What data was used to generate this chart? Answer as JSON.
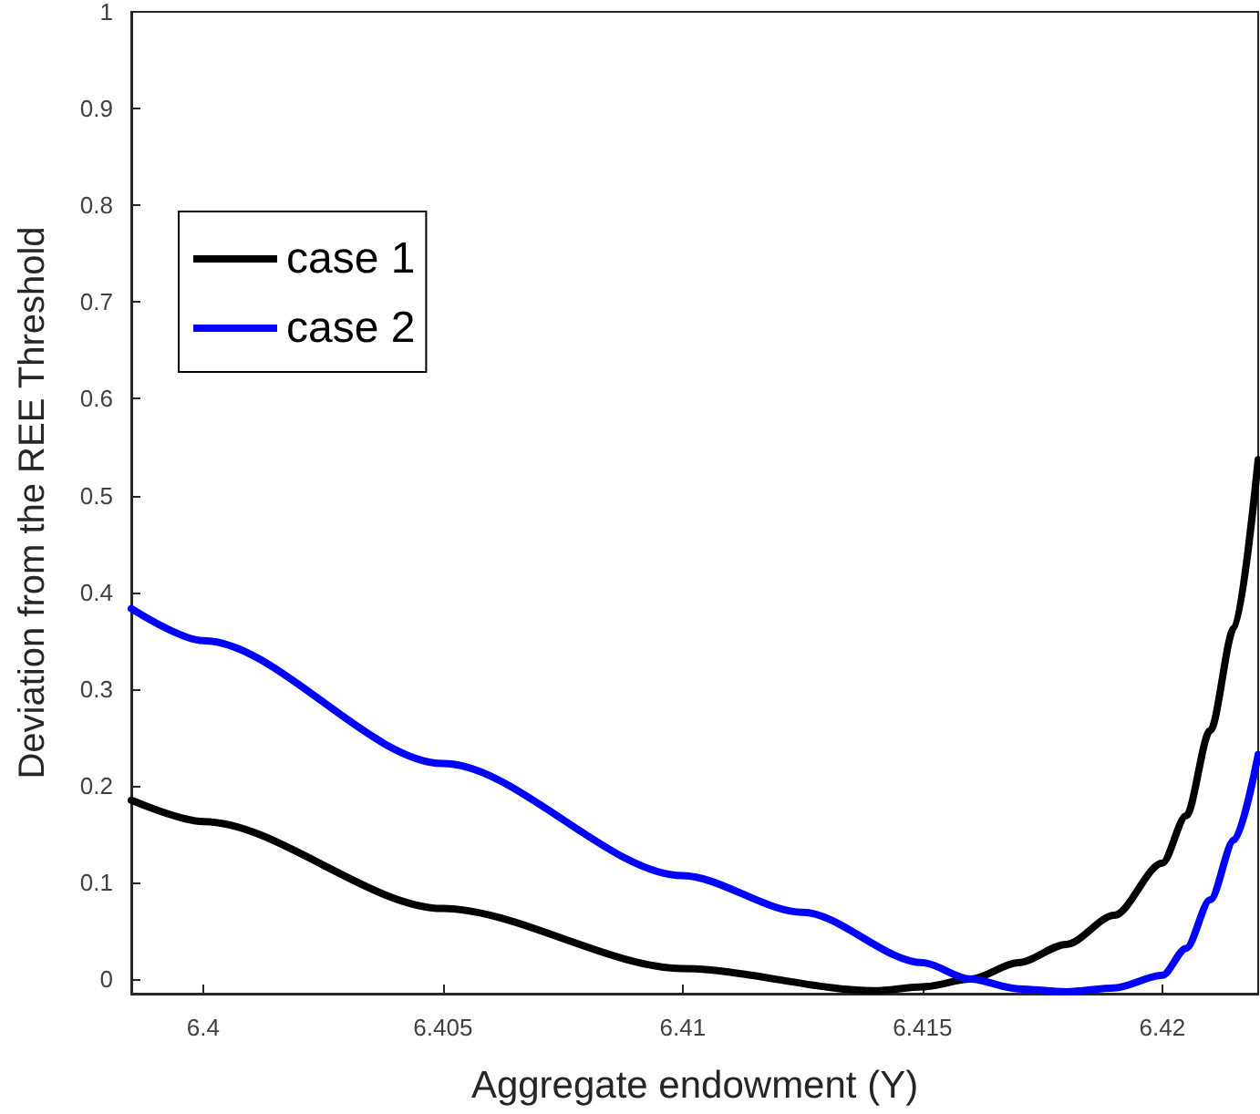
{
  "chart_data": {
    "type": "line",
    "xlabel": "Aggregate endowment (Y)",
    "ylabel": "Deviation from the REE Threshold",
    "series": [
      {
        "name": "case 1",
        "color": "#000000",
        "x": [
          6.3985,
          6.4,
          6.405,
          6.41,
          6.414,
          6.415,
          6.416,
          6.417,
          6.418,
          6.419,
          6.42,
          6.4205,
          6.421,
          6.4215,
          6.422
        ],
        "values": [
          0.185,
          0.163,
          0.073,
          0.011,
          -0.012,
          -0.008,
          0.0,
          0.017,
          0.036,
          0.066,
          0.12,
          0.169,
          0.257,
          0.363,
          0.537
        ]
      },
      {
        "name": "case 2",
        "color": "#0000ff",
        "x": [
          6.3985,
          6.4,
          6.405,
          6.41,
          6.4125,
          6.415,
          6.416,
          6.417,
          6.418,
          6.419,
          6.42,
          6.4205,
          6.421,
          6.4215,
          6.422
        ],
        "values": [
          0.383,
          0.35,
          0.223,
          0.107,
          0.069,
          0.017,
          0.0,
          -0.01,
          -0.013,
          -0.009,
          0.004,
          0.032,
          0.082,
          0.144,
          0.232
        ]
      }
    ],
    "xlim": [
      6.3985,
      6.422
    ],
    "xticks": [
      6.4,
      6.405,
      6.41,
      6.415,
      6.42
    ],
    "ylim": [
      -0.015,
      1
    ],
    "yticks": [
      0,
      0.1,
      0.2,
      0.3,
      0.4,
      0.5,
      0.6,
      0.7,
      0.8,
      0.9,
      1
    ],
    "grid": false,
    "legend": "top left",
    "marker": "none",
    "line_style": "solid"
  }
}
